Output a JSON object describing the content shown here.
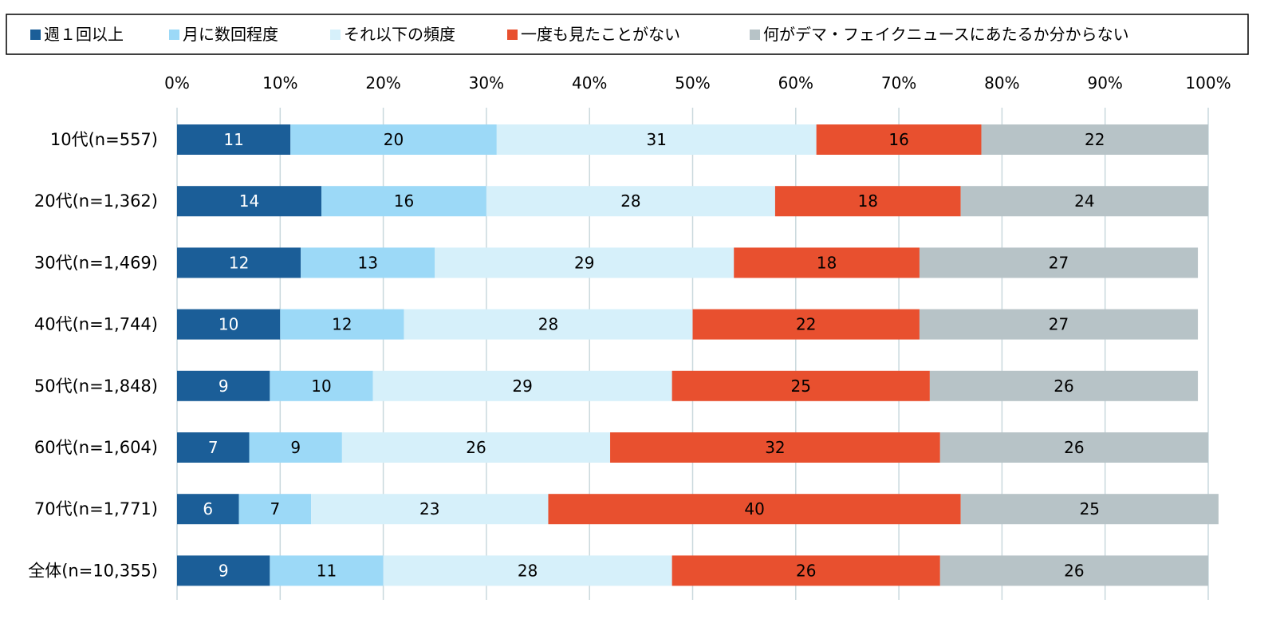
{
  "chart_data": {
    "type": "bar",
    "orientation": "horizontal",
    "stacked": true,
    "categories": [
      "10代(n=557)",
      "20代(n=1,362)",
      "30代(n=1,469)",
      "40代(n=1,744)",
      "50代(n=1,848)",
      "60代(n=1,604)",
      "70代(n=1,771)",
      "全体(n=10,355)"
    ],
    "series": [
      {
        "name": "週１回以上",
        "color": "#1b5e98",
        "label_color": "#ffffff",
        "values": [
          11,
          14,
          12,
          10,
          9,
          7,
          6,
          9
        ]
      },
      {
        "name": "月に数回程度",
        "color": "#9cd9f7",
        "label_color": "#000000",
        "values": [
          20,
          16,
          13,
          12,
          10,
          9,
          7,
          11
        ]
      },
      {
        "name": "それ以下の頻度",
        "color": "#d6f0fa",
        "label_color": "#000000",
        "values": [
          31,
          28,
          29,
          28,
          29,
          26,
          23,
          28
        ]
      },
      {
        "name": "一度も見たことがない",
        "color": "#e8502f",
        "label_color": "#000000",
        "values": [
          16,
          18,
          18,
          22,
          25,
          32,
          40,
          26
        ]
      },
      {
        "name": "何がデマ・フェイクニュースにあたるか分からない",
        "color": "#b7c3c7",
        "label_color": "#000000",
        "values": [
          22,
          24,
          27,
          27,
          26,
          26,
          25,
          26
        ]
      }
    ],
    "xlim": [
      0,
      100
    ],
    "x_ticks": [
      "0%",
      "10%",
      "20%",
      "30%",
      "40%",
      "50%",
      "60%",
      "70%",
      "80%",
      "90%",
      "100%"
    ],
    "grid": true,
    "legend_position": "top",
    "title": "",
    "xlabel": "",
    "ylabel": ""
  }
}
